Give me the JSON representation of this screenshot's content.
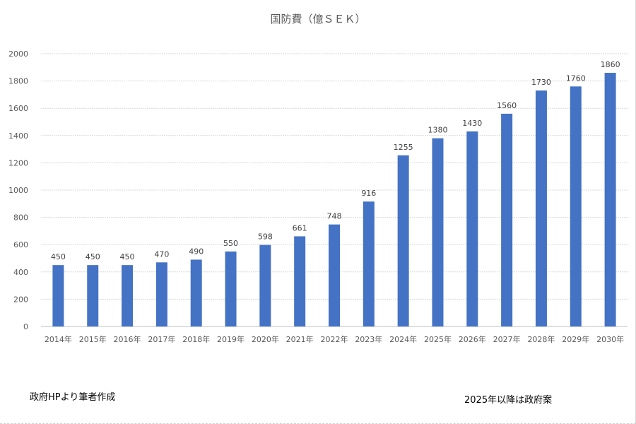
{
  "chart_data": {
    "type": "bar",
    "title": "国防費（億ＳＥＫ）",
    "categories": [
      "2014年",
      "2015年",
      "2016年",
      "2017年",
      "2018年",
      "2019年",
      "2020年",
      "2021年",
      "2022年",
      "2023年",
      "2024年",
      "2025年",
      "2026年",
      "2027年",
      "2028年",
      "2029年",
      "2030年"
    ],
    "values": [
      450,
      450,
      450,
      470,
      490,
      550,
      598,
      661,
      748,
      916,
      1255,
      1380,
      1430,
      1560,
      1730,
      1760,
      1860
    ],
    "yticks": [
      0,
      200,
      400,
      600,
      800,
      1000,
      1200,
      1400,
      1600,
      1800,
      2000
    ],
    "ylim": [
      0,
      2000
    ],
    "grid": true,
    "bar_color": "#4472C4",
    "data_labels": true
  },
  "notes": {
    "source": "政府HPより筆者作成",
    "plan": "2025年以降は政府案"
  }
}
